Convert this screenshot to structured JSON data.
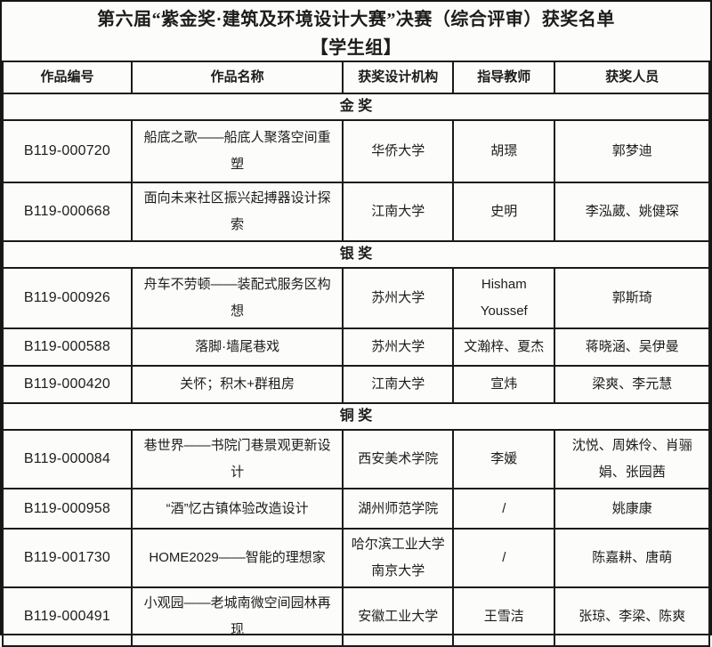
{
  "page": {
    "title_line1": "第六届“紫金奖·建筑及环境设计大赛”决赛（综合评审）获奖名单",
    "title_line2": "【学生组】"
  },
  "table": {
    "headers": [
      "作品编号",
      "作品名称",
      "获奖设计机构",
      "指导教师",
      "获奖人员"
    ],
    "sections": [
      {
        "label": "金 奖",
        "rows": [
          {
            "code": "B119-000720",
            "name": "船底之歌——船底人聚落空间重塑",
            "institution": "华侨大学",
            "teacher": "胡璟",
            "winners": "郭梦迪"
          },
          {
            "code": "B119-000668",
            "name": "面向未来社区振兴起搏器设计探索",
            "institution": "江南大学",
            "teacher": "史明",
            "winners": "李泓葳、姚健琛"
          }
        ]
      },
      {
        "label": "银 奖",
        "rows": [
          {
            "code": "B119-000926",
            "name": "舟车不劳顿——装配式服务区构想",
            "institution": "苏州大学",
            "teacher": "Hisham Youssef",
            "winners": "郭斯琦"
          },
          {
            "code": "B119-000588",
            "name": "落脚·墙尾巷戏",
            "institution": "苏州大学",
            "teacher": "文瀚梓、夏杰",
            "winners": "蒋晓涵、吴伊曼"
          },
          {
            "code": "B119-000420",
            "name": "关怀；积木+群租房",
            "institution": "江南大学",
            "teacher": "宣炜",
            "winners": "梁爽、李元慧"
          }
        ]
      },
      {
        "label": "铜 奖",
        "rows": [
          {
            "code": "B119-000084",
            "name": "巷世界——书院门巷景观更新设计",
            "institution": "西安美术学院",
            "teacher": "李媛",
            "winners": "沈悦、周姝伶、肖骊娟、张园茜"
          },
          {
            "code": "B119-000958",
            "name": "“酒”忆古镇体验改造设计",
            "institution": "湖州师范学院",
            "teacher": "/",
            "winners": "姚康康"
          },
          {
            "code": "B119-001730",
            "name": "HOME2029——智能的理想家",
            "institution": "哈尔滨工业大学 南京大学",
            "teacher": "/",
            "winners": "陈嘉耕、唐萌"
          },
          {
            "code": "B119-000491",
            "name": "小观园——老城南微空间园林再现",
            "institution": "安徽工业大学",
            "teacher": "王雪洁",
            "winners": "张琼、李梁、陈爽"
          }
        ]
      }
    ]
  },
  "colors": {
    "background": "#fcfcfb",
    "text": "#1c1c1c",
    "border": "#1a1a1a"
  }
}
